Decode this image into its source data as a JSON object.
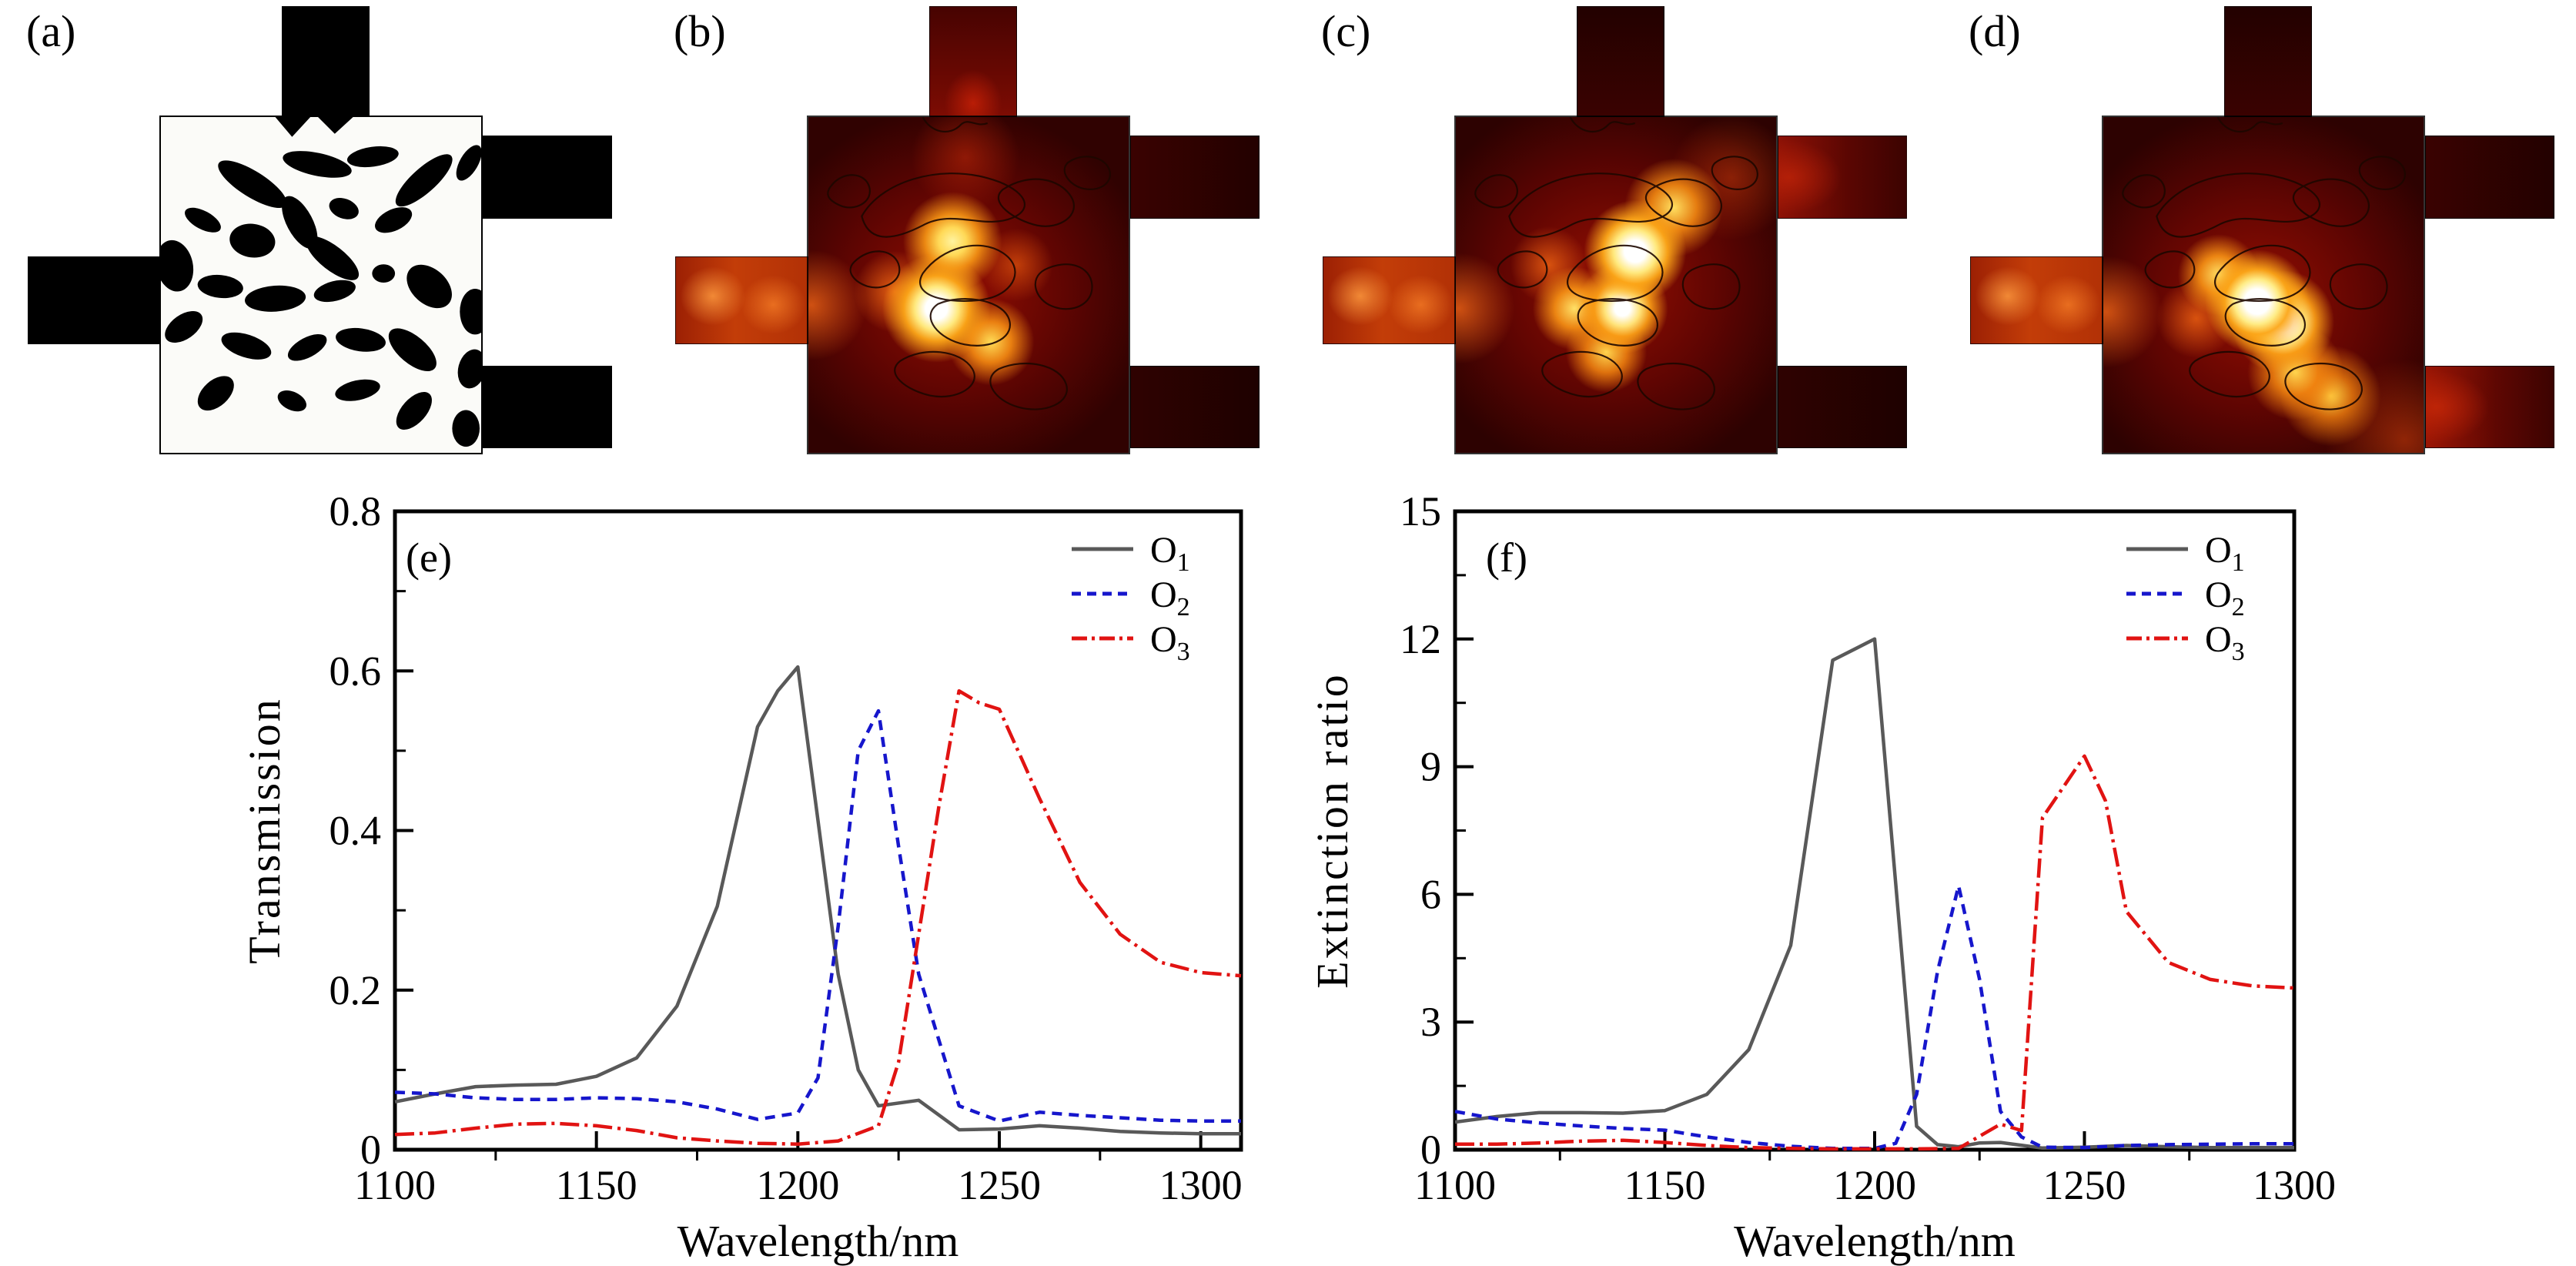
{
  "figure": {
    "background": "#ffffff",
    "panels": [
      {
        "label": "(a)",
        "kind": "design-pattern",
        "description": "binary topology-optimized design region with input waveguide left, outputs top / upper-right / lower-right"
      },
      {
        "label": "(b)",
        "kind": "field-map",
        "resonance": "O1",
        "bright_output": "top"
      },
      {
        "label": "(c)",
        "kind": "field-map",
        "resonance": "O2",
        "bright_output": "upper-right"
      },
      {
        "label": "(d)",
        "kind": "field-map",
        "resonance": "O3",
        "bright_output": "lower-right"
      }
    ],
    "colors": {
      "o1": "#595959",
      "o2": "#1616cc",
      "o3": "#e11312",
      "frame": "#000000",
      "structure": "#000000",
      "field_hot": "#ffffff"
    }
  },
  "chart_data": [
    {
      "id": "e",
      "type": "line",
      "panel_label": "(e)",
      "xlabel": "Wavelength/nm",
      "ylabel": "Transmission",
      "xlim": [
        1100,
        1310
      ],
      "ylim": [
        0,
        0.8
      ],
      "x_major": [
        1100,
        1150,
        1200,
        1250,
        1300
      ],
      "x_major_labels": [
        "1100",
        "1150",
        "1200",
        "1250",
        "1300"
      ],
      "x_minor": [
        1125,
        1175,
        1225,
        1275
      ],
      "y_major": [
        0,
        0.2,
        0.4,
        0.6,
        0.8
      ],
      "y_major_labels": [
        "0",
        "0.2",
        "0.4",
        "0.6",
        "0.8"
      ],
      "y_minor": [
        0.1,
        0.3,
        0.5,
        0.7
      ],
      "grid": false,
      "legend_position": "top-right",
      "series": [
        {
          "label": "O",
          "label_sub": "1",
          "color": "#595959",
          "style": "solid",
          "points": [
            [
              1100,
              0.06
            ],
            [
              1110,
              0.07
            ],
            [
              1120,
              0.079
            ],
            [
              1130,
              0.081
            ],
            [
              1140,
              0.082
            ],
            [
              1150,
              0.092
            ],
            [
              1160,
              0.115
            ],
            [
              1170,
              0.18
            ],
            [
              1180,
              0.305
            ],
            [
              1190,
              0.53
            ],
            [
              1195,
              0.575
            ],
            [
              1200,
              0.605
            ],
            [
              1210,
              0.22
            ],
            [
              1215,
              0.1
            ],
            [
              1220,
              0.055
            ],
            [
              1230,
              0.062
            ],
            [
              1240,
              0.025
            ],
            [
              1250,
              0.026
            ],
            [
              1260,
              0.03
            ],
            [
              1270,
              0.027
            ],
            [
              1280,
              0.023
            ],
            [
              1290,
              0.021
            ],
            [
              1300,
              0.02
            ],
            [
              1310,
              0.02
            ]
          ]
        },
        {
          "label": "O",
          "label_sub": "2",
          "color": "#1616cc",
          "style": "dashed",
          "points": [
            [
              1100,
              0.072
            ],
            [
              1110,
              0.07
            ],
            [
              1120,
              0.065
            ],
            [
              1130,
              0.063
            ],
            [
              1140,
              0.063
            ],
            [
              1150,
              0.065
            ],
            [
              1160,
              0.064
            ],
            [
              1170,
              0.06
            ],
            [
              1180,
              0.051
            ],
            [
              1190,
              0.038
            ],
            [
              1200,
              0.046
            ],
            [
              1205,
              0.09
            ],
            [
              1210,
              0.28
            ],
            [
              1215,
              0.5
            ],
            [
              1220,
              0.55
            ],
            [
              1225,
              0.38
            ],
            [
              1230,
              0.22
            ],
            [
              1240,
              0.055
            ],
            [
              1250,
              0.036
            ],
            [
              1260,
              0.047
            ],
            [
              1270,
              0.043
            ],
            [
              1280,
              0.04
            ],
            [
              1290,
              0.037
            ],
            [
              1300,
              0.036
            ],
            [
              1310,
              0.036
            ]
          ]
        },
        {
          "label": "O",
          "label_sub": "3",
          "color": "#e11312",
          "style": "dashdot",
          "points": [
            [
              1100,
              0.019
            ],
            [
              1110,
              0.021
            ],
            [
              1120,
              0.027
            ],
            [
              1130,
              0.032
            ],
            [
              1140,
              0.033
            ],
            [
              1150,
              0.03
            ],
            [
              1160,
              0.024
            ],
            [
              1170,
              0.015
            ],
            [
              1180,
              0.011
            ],
            [
              1190,
              0.008
            ],
            [
              1200,
              0.007
            ],
            [
              1210,
              0.011
            ],
            [
              1220,
              0.03
            ],
            [
              1225,
              0.11
            ],
            [
              1230,
              0.27
            ],
            [
              1235,
              0.43
            ],
            [
              1240,
              0.575
            ],
            [
              1245,
              0.56
            ],
            [
              1250,
              0.552
            ],
            [
              1260,
              0.44
            ],
            [
              1270,
              0.335
            ],
            [
              1280,
              0.27
            ],
            [
              1290,
              0.235
            ],
            [
              1300,
              0.222
            ],
            [
              1310,
              0.218
            ]
          ]
        }
      ]
    },
    {
      "id": "f",
      "type": "line",
      "panel_label": "(f)",
      "xlabel": "Wavelength/nm",
      "ylabel": "Extinction ratio",
      "xlim": [
        1100,
        1300
      ],
      "ylim": [
        0,
        15
      ],
      "x_major": [
        1100,
        1150,
        1200,
        1250,
        1300
      ],
      "x_major_labels": [
        "1100",
        "1150",
        "1200",
        "1250",
        "1300"
      ],
      "x_minor": [
        1125,
        1175,
        1225,
        1275
      ],
      "y_major": [
        0,
        3,
        6,
        9,
        12,
        15
      ],
      "y_major_labels": [
        "0",
        "3",
        "6",
        "9",
        "12",
        "15"
      ],
      "y_minor": [
        1.5,
        4.5,
        7.5,
        10.5,
        13.5
      ],
      "grid": false,
      "legend_position": "top-right",
      "series": [
        {
          "label": "O",
          "label_sub": "1",
          "color": "#595959",
          "style": "solid",
          "points": [
            [
              1100,
              0.65
            ],
            [
              1110,
              0.78
            ],
            [
              1120,
              0.87
            ],
            [
              1130,
              0.87
            ],
            [
              1140,
              0.86
            ],
            [
              1150,
              0.92
            ],
            [
              1160,
              1.3
            ],
            [
              1170,
              2.35
            ],
            [
              1180,
              4.8
            ],
            [
              1190,
              11.5
            ],
            [
              1200,
              12.0
            ],
            [
              1210,
              0.55
            ],
            [
              1215,
              0.12
            ],
            [
              1220,
              0.07
            ],
            [
              1225,
              0.16
            ],
            [
              1230,
              0.17
            ],
            [
              1240,
              0.04
            ],
            [
              1250,
              0.06
            ],
            [
              1260,
              0.1
            ],
            [
              1270,
              0.07
            ],
            [
              1280,
              0.05
            ],
            [
              1290,
              0.05
            ],
            [
              1300,
              0.05
            ]
          ]
        },
        {
          "label": "O",
          "label_sub": "2",
          "color": "#1616cc",
          "style": "dashed",
          "points": [
            [
              1100,
              0.9
            ],
            [
              1110,
              0.72
            ],
            [
              1120,
              0.63
            ],
            [
              1130,
              0.56
            ],
            [
              1140,
              0.5
            ],
            [
              1150,
              0.46
            ],
            [
              1160,
              0.3
            ],
            [
              1170,
              0.17
            ],
            [
              1180,
              0.08
            ],
            [
              1190,
              0.03
            ],
            [
              1200,
              0.03
            ],
            [
              1205,
              0.15
            ],
            [
              1210,
              1.3
            ],
            [
              1215,
              4.2
            ],
            [
              1220,
              6.2
            ],
            [
              1225,
              4.0
            ],
            [
              1230,
              0.9
            ],
            [
              1235,
              0.3
            ],
            [
              1240,
              0.06
            ],
            [
              1250,
              0.05
            ],
            [
              1260,
              0.1
            ],
            [
              1270,
              0.12
            ],
            [
              1280,
              0.13
            ],
            [
              1290,
              0.14
            ],
            [
              1300,
              0.14
            ]
          ]
        },
        {
          "label": "O",
          "label_sub": "3",
          "color": "#e11312",
          "style": "dashdot",
          "points": [
            [
              1100,
              0.13
            ],
            [
              1110,
              0.13
            ],
            [
              1120,
              0.16
            ],
            [
              1130,
              0.2
            ],
            [
              1140,
              0.22
            ],
            [
              1150,
              0.17
            ],
            [
              1160,
              0.1
            ],
            [
              1170,
              0.05
            ],
            [
              1180,
              0.03
            ],
            [
              1190,
              0.02
            ],
            [
              1200,
              0.02
            ],
            [
              1210,
              0.02
            ],
            [
              1220,
              0.03
            ],
            [
              1230,
              0.6
            ],
            [
              1235,
              0.45
            ],
            [
              1240,
              7.8
            ],
            [
              1250,
              9.25
            ],
            [
              1255,
              8.2
            ],
            [
              1260,
              5.6
            ],
            [
              1270,
              4.4
            ],
            [
              1280,
              4.0
            ],
            [
              1290,
              3.85
            ],
            [
              1300,
              3.8
            ]
          ]
        }
      ]
    }
  ]
}
